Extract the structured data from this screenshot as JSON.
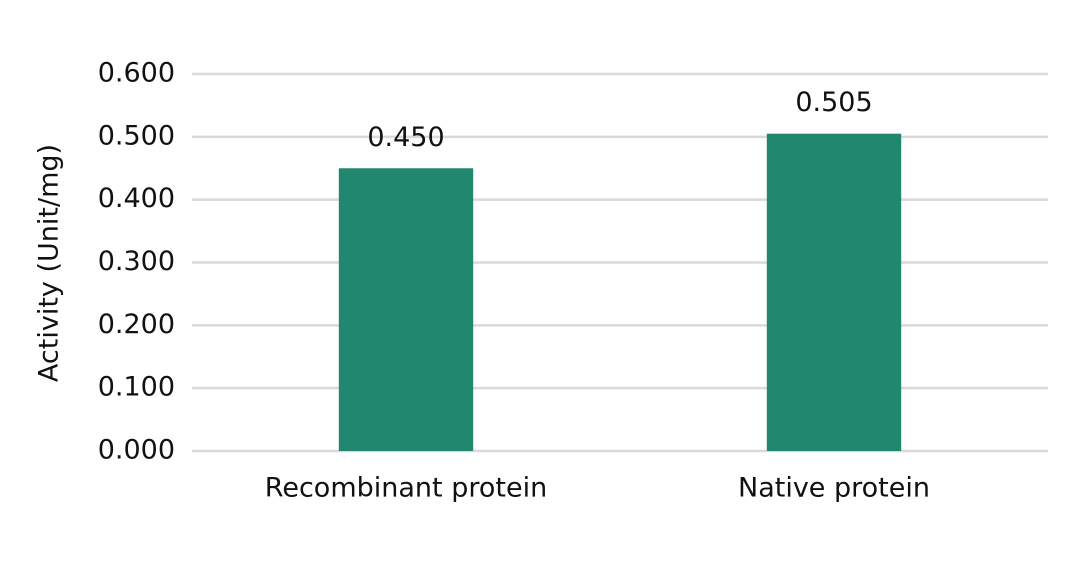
{
  "chart_data": {
    "type": "bar",
    "y_label": "Activity (Unit/mg)",
    "categories": [
      "Recombinant protein",
      "Native protein"
    ],
    "values": [
      0.45,
      0.505
    ],
    "value_labels": [
      "0.450",
      "0.505"
    ],
    "color": "#22876f",
    "ylim": [
      0,
      0.6
    ],
    "yticks": [
      {
        "value": 0,
        "label": "0.000"
      },
      {
        "value": 0.1,
        "label": "0.100"
      },
      {
        "value": 0.2,
        "label": "0.200"
      },
      {
        "value": 0.3,
        "label": "0.300"
      },
      {
        "value": 0.4,
        "label": "0.400"
      },
      {
        "value": 0.5,
        "label": "0.500"
      },
      {
        "value": 0.6,
        "label": "0.600"
      }
    ],
    "grid": true
  }
}
